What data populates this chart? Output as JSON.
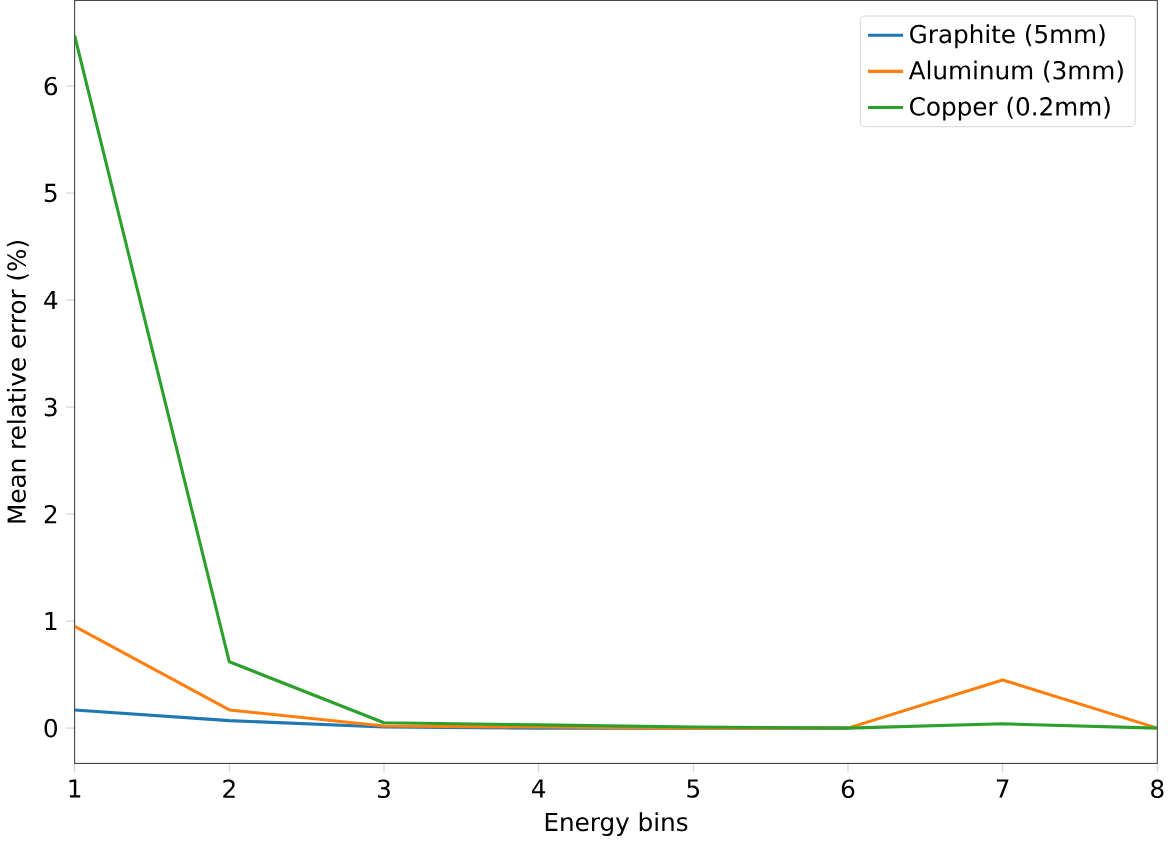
{
  "chart_data": {
    "type": "line",
    "xlabel": "Energy bins",
    "ylabel": "Mean relative error (%)",
    "x": [
      1,
      2,
      3,
      4,
      5,
      6,
      7,
      8
    ],
    "series": [
      {
        "name": "Graphite (5mm)",
        "color": "#1f77b4",
        "values": [
          0.17,
          0.07,
          0.01,
          0.0,
          0.0,
          0.0,
          null,
          null
        ]
      },
      {
        "name": "Aluminum (3mm)",
        "color": "#ff7f0e",
        "values": [
          0.95,
          0.17,
          0.02,
          0.01,
          0.0,
          0.0,
          0.45,
          0.0
        ]
      },
      {
        "name": "Copper (0.2mm)",
        "color": "#2ca02c",
        "values": [
          6.47,
          0.62,
          0.05,
          0.03,
          0.01,
          0.0,
          0.04,
          0.0
        ]
      }
    ],
    "xlim": [
      1,
      8
    ],
    "ylim": [
      -0.33,
      6.8
    ],
    "xticks": [
      1,
      2,
      3,
      4,
      5,
      6,
      7,
      8
    ],
    "yticks": [
      0,
      1,
      2,
      3,
      4,
      5,
      6
    ],
    "legend": "top right",
    "grid": false
  }
}
